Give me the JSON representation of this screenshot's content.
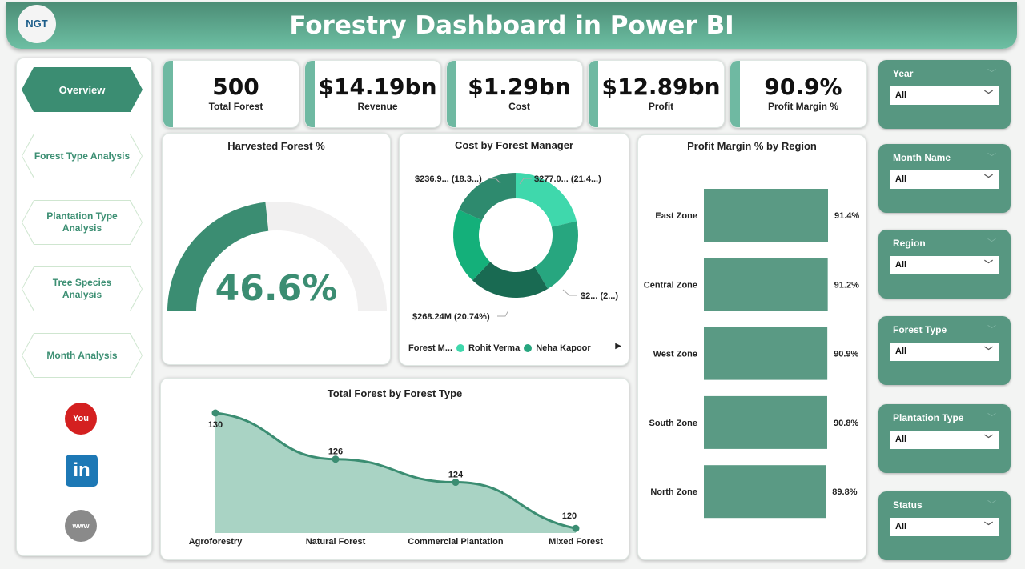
{
  "header": {
    "title": "Forestry Dashboard in Power BI",
    "logo_text": "NGT"
  },
  "nav": {
    "items": [
      {
        "label": "Overview",
        "active": true
      },
      {
        "label": "Forest Type Analysis"
      },
      {
        "label": "Plantation Type Analysis"
      },
      {
        "label": "Tree Species Analysis"
      },
      {
        "label": "Month Analysis"
      }
    ],
    "social": [
      "youtube-icon",
      "linkedin-icon",
      "website-icon"
    ]
  },
  "kpis": [
    {
      "value": "500",
      "label": "Total Forest"
    },
    {
      "value": "$14.19bn",
      "label": "Revenue"
    },
    {
      "value": "$1.29bn",
      "label": "Cost"
    },
    {
      "value": "$12.89bn",
      "label": "Profit"
    },
    {
      "value": "90.9%",
      "label": "Profit Margin %"
    }
  ],
  "colors": {
    "accent": "#3b8d72",
    "header": "#5ea88f",
    "filter": "#579781",
    "bar": "#5a9a84"
  },
  "chart_data": [
    {
      "type": "gauge",
      "title": "Harvested Forest %",
      "value": 46.6,
      "label": "46.6%",
      "range": [
        0,
        100
      ]
    },
    {
      "type": "pie",
      "title": "Cost by Forest Manager",
      "donut": true,
      "legend_title": "Forest M...",
      "legend": [
        "Rohit Verma",
        "Neha Kapoor"
      ],
      "slices": [
        {
          "percent": 21.4,
          "label": "$277.0... (21.4...)",
          "color": "#3fd8ac"
        },
        {
          "percent": 20.0,
          "label": "$2... (2...)",
          "color": "#27a67f"
        },
        {
          "percent": 20.74,
          "label": "$268.24M (20.74%)",
          "color": "#196a52"
        },
        {
          "percent": 19.56,
          "label": "",
          "color": "#14b07a"
        },
        {
          "percent": 18.3,
          "label": "$236.9... (18.3...)",
          "color": "#2e8a6e"
        }
      ]
    },
    {
      "type": "bar",
      "orientation": "horizontal",
      "title": "Profit Margin % by Region",
      "categories": [
        "East Zone",
        "Central Zone",
        "West Zone",
        "South Zone",
        "North Zone"
      ],
      "values": [
        91.4,
        91.2,
        90.9,
        90.8,
        89.8
      ],
      "labels": [
        "91.4%",
        "91.2%",
        "90.9%",
        "90.8%",
        "89.8%"
      ]
    },
    {
      "type": "area",
      "title": "Total Forest by Forest Type",
      "categories": [
        "Agroforestry",
        "Natural Forest",
        "Commercial Plantation",
        "Mixed Forest"
      ],
      "values": [
        130,
        126,
        124,
        120
      ]
    }
  ],
  "filters": [
    {
      "label": "Year",
      "value": "All"
    },
    {
      "label": "Month Name",
      "value": "All"
    },
    {
      "label": "Region",
      "value": "All"
    },
    {
      "label": "Forest Type",
      "value": "All"
    },
    {
      "label": "Plantation Type",
      "value": "All"
    },
    {
      "label": "Status",
      "value": "All"
    }
  ]
}
